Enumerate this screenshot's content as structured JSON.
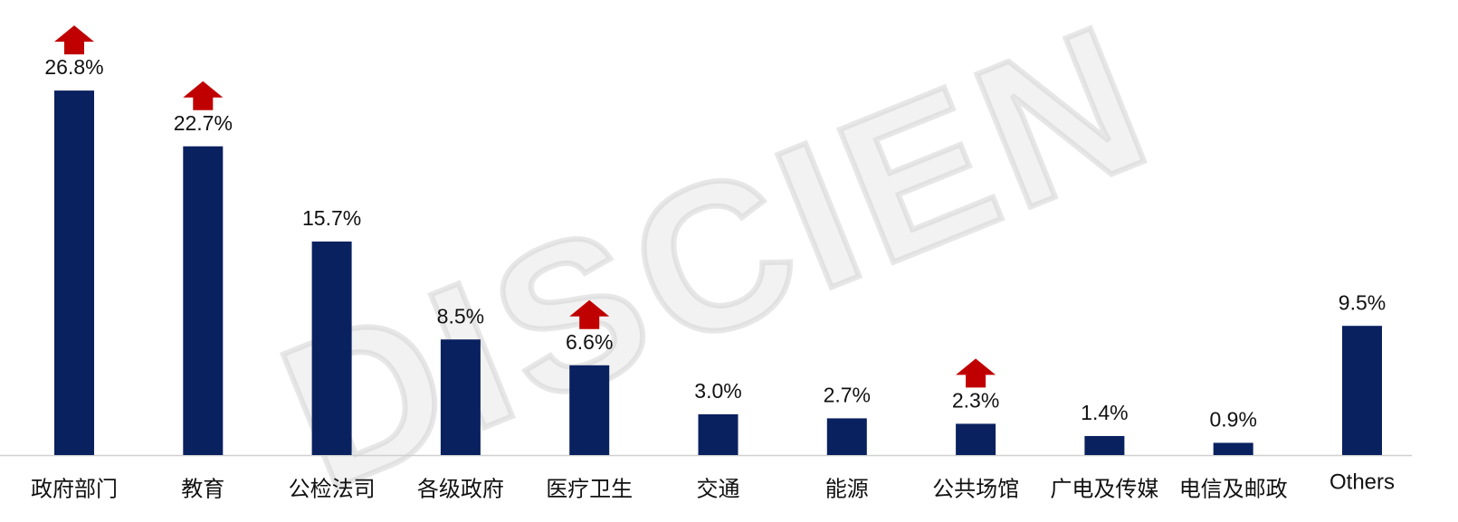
{
  "chart_data": {
    "type": "bar",
    "watermark": "DISCIEN",
    "categories": [
      "政府部门",
      "教育",
      "公检法司",
      "各级政府",
      "医疗卫生",
      "交通",
      "能源",
      "公共场馆",
      "广电及传媒",
      "电信及邮政",
      "Others"
    ],
    "values": [
      26.8,
      22.7,
      15.7,
      8.5,
      6.6,
      3.0,
      2.7,
      2.3,
      1.4,
      0.9,
      9.5
    ],
    "value_labels": [
      "26.8%",
      "22.7%",
      "15.7%",
      "8.5%",
      "6.6%",
      "3.0%",
      "2.7%",
      "2.3%",
      "1.4%",
      "0.9%",
      "9.5%"
    ],
    "up_arrows": [
      true,
      true,
      false,
      false,
      true,
      false,
      false,
      true,
      false,
      false,
      false
    ],
    "color": "#0a2160",
    "arrow_color": "#c00000",
    "ylim": [
      0,
      30
    ]
  }
}
